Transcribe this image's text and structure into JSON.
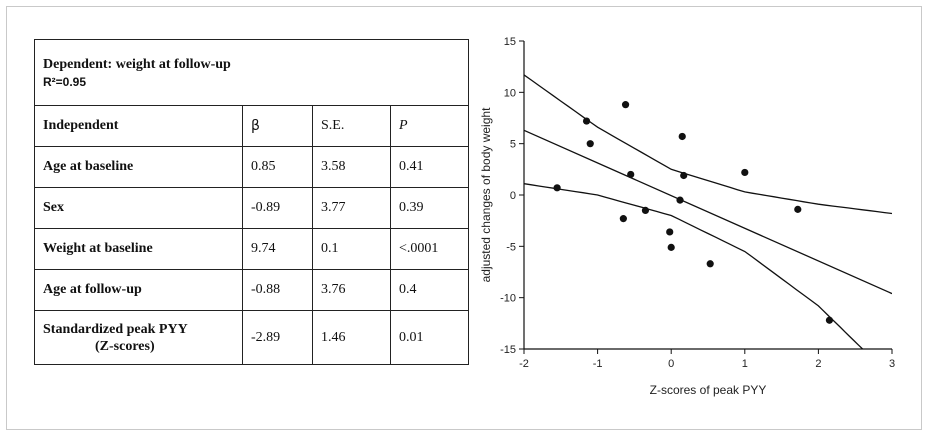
{
  "table": {
    "dependent_label": "Dependent:  weight at follow-up",
    "r_squared": "R²=0.95",
    "headers": [
      "Independent",
      "β",
      "S.E.",
      "P"
    ],
    "rows": [
      {
        "label": "Age at baseline",
        "label_sub": "",
        "beta": "0.85",
        "se": "3.58",
        "p": "0.41"
      },
      {
        "label": "Sex",
        "label_sub": "",
        "beta": "-0.89",
        "se": "3.77",
        "p": "0.39"
      },
      {
        "label": "Weight at baseline",
        "label_sub": "",
        "beta": "9.74",
        "se": "0.1",
        "p": "<.0001"
      },
      {
        "label": "Age at follow-up",
        "label_sub": "",
        "beta": "-0.88",
        "se": "3.76",
        "p": "0.4"
      },
      {
        "label": "Standardized peak PYY",
        "label_sub": "(Z-scores)",
        "beta": "-2.89",
        "se": "1.46",
        "p": "0.01"
      }
    ]
  },
  "chart_data": {
    "type": "scatter",
    "xlabel": "Z-scores of peak PYY",
    "ylabel": "adjusted changes of body weight",
    "xlim": [
      -2,
      3
    ],
    "ylim": [
      -15,
      15
    ],
    "xticks": [
      "-2",
      "-1",
      "0",
      "1",
      "2",
      "3"
    ],
    "yticks": [
      "15",
      "10",
      "5",
      "0",
      "-5",
      "-10",
      "-15"
    ],
    "points": [
      {
        "x": -1.55,
        "y": 0.7
      },
      {
        "x": -1.15,
        "y": 7.2
      },
      {
        "x": -1.1,
        "y": 5.0
      },
      {
        "x": -0.62,
        "y": 8.8
      },
      {
        "x": -0.65,
        "y": -2.3
      },
      {
        "x": -0.55,
        "y": 2.0
      },
      {
        "x": -0.35,
        "y": -1.5
      },
      {
        "x": -0.02,
        "y": -3.6
      },
      {
        "x": 0.0,
        "y": -5.1
      },
      {
        "x": 0.12,
        "y": -0.5
      },
      {
        "x": 0.15,
        "y": 5.7
      },
      {
        "x": 0.17,
        "y": 1.9
      },
      {
        "x": 0.53,
        "y": -6.7
      },
      {
        "x": 1.0,
        "y": 2.2
      },
      {
        "x": 1.72,
        "y": -1.4
      },
      {
        "x": 2.15,
        "y": -12.2
      }
    ],
    "regression_line": {
      "x": [
        -2,
        3
      ],
      "y": [
        6.3,
        -9.6
      ]
    },
    "upper_band": {
      "x": [
        -2,
        -1,
        0,
        1,
        2,
        3
      ],
      "y": [
        11.7,
        6.6,
        2.5,
        0.3,
        -0.9,
        -1.8
      ]
    },
    "lower_band": {
      "x": [
        -2,
        -1,
        0,
        1,
        2,
        2.6
      ],
      "y": [
        1.1,
        0.0,
        -2.0,
        -5.5,
        -10.8,
        -15
      ]
    }
  }
}
